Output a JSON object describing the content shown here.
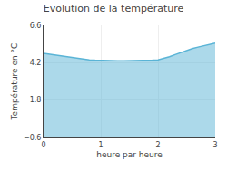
{
  "chart_data": {
    "type": "area",
    "title": "Evolution de la température",
    "xlabel": "heure par heure",
    "ylabel": "Température en °C",
    "x": [
      0,
      0.1,
      0.2,
      0.3,
      0.4,
      0.5,
      0.6,
      0.7,
      0.8,
      0.9,
      1.0,
      1.1,
      1.2,
      1.3,
      1.4,
      1.5,
      1.6,
      1.7,
      1.8,
      1.9,
      2.0,
      2.1,
      2.2,
      2.3,
      2.4,
      2.5,
      2.6,
      2.7,
      2.8,
      2.9,
      3.0
    ],
    "values": [
      4.8,
      4.75,
      4.68,
      4.62,
      4.58,
      4.52,
      4.46,
      4.42,
      4.38,
      4.36,
      4.34,
      4.33,
      4.32,
      4.32,
      4.32,
      4.32,
      4.32,
      4.33,
      4.34,
      4.36,
      4.38,
      4.46,
      4.58,
      4.72,
      4.86,
      4.98,
      5.1,
      5.2,
      5.28,
      5.38,
      5.46
    ],
    "color": "#5ab4d6",
    "xlim": [
      0,
      3
    ],
    "xticks": [
      0,
      1,
      2,
      3
    ],
    "ylim": [
      -0.6,
      6.6
    ],
    "yticks": [
      -0.6,
      1.8,
      4.2,
      6.6
    ],
    "grid": true
  }
}
